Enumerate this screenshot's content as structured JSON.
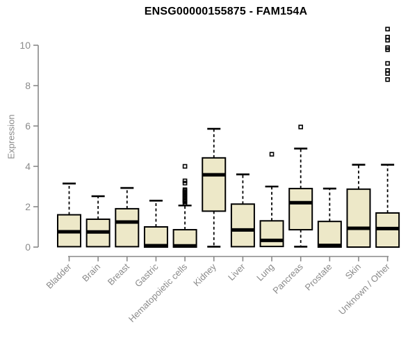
{
  "chart_data": {
    "type": "boxplot",
    "title": "ENSG00000155875 - FAM154A",
    "ylabel": "Expression",
    "xlabel": "",
    "ylim": [
      0,
      10.9
    ],
    "yticks": [
      0,
      2,
      4,
      6,
      8,
      10
    ],
    "grid": false,
    "legend": "none",
    "categories": [
      "Bladder",
      "Brain",
      "Breast",
      "Gastric",
      "Hematopoietic cells",
      "Kidney",
      "Liver",
      "Lung",
      "Pancreas",
      "Prostate",
      "Skin",
      "Unknown / Other"
    ],
    "series": [
      {
        "name": "Bladder",
        "whisker_low": 0.02,
        "q1": 0.02,
        "median": 0.76,
        "q3": 1.6,
        "whisker_high": 3.15,
        "outliers": []
      },
      {
        "name": "Brain",
        "whisker_low": 0.02,
        "q1": 0.02,
        "median": 0.75,
        "q3": 1.38,
        "whisker_high": 2.52,
        "outliers": []
      },
      {
        "name": "Breast",
        "whisker_low": 0.02,
        "q1": 0.02,
        "median": 1.24,
        "q3": 1.9,
        "whisker_high": 2.93,
        "outliers": []
      },
      {
        "name": "Gastric",
        "whisker_low": 0.0,
        "q1": 0.0,
        "median": 0.07,
        "q3": 1.0,
        "whisker_high": 2.3,
        "outliers": []
      },
      {
        "name": "Hematopoietic cells",
        "whisker_low": 0.0,
        "q1": 0.0,
        "median": 0.06,
        "q3": 0.86,
        "whisker_high": 2.06,
        "outliers": [
          2.18,
          2.25,
          2.3,
          2.36,
          2.42,
          2.48,
          2.54,
          2.6,
          2.66,
          2.72,
          2.78,
          2.84,
          3.17,
          3.28,
          4.0
        ]
      },
      {
        "name": "Kidney",
        "whisker_low": 0.02,
        "q1": 1.78,
        "median": 3.58,
        "q3": 4.42,
        "whisker_high": 5.86,
        "outliers": []
      },
      {
        "name": "Liver",
        "whisker_low": 0.02,
        "q1": 0.02,
        "median": 0.85,
        "q3": 2.13,
        "whisker_high": 3.6,
        "outliers": []
      },
      {
        "name": "Lung",
        "whisker_low": 0.03,
        "q1": 0.03,
        "median": 0.33,
        "q3": 1.3,
        "whisker_high": 3.0,
        "outliers": [
          4.6
        ]
      },
      {
        "name": "Pancreas",
        "whisker_low": 0.02,
        "q1": 0.86,
        "median": 2.2,
        "q3": 2.9,
        "whisker_high": 4.88,
        "outliers": [
          5.95
        ]
      },
      {
        "name": "Prostate",
        "whisker_low": 0.0,
        "q1": 0.0,
        "median": 0.08,
        "q3": 1.27,
        "whisker_high": 2.9,
        "outliers": []
      },
      {
        "name": "Skin",
        "whisker_low": 0.0,
        "q1": 0.0,
        "median": 0.93,
        "q3": 2.87,
        "whisker_high": 4.08,
        "outliers": []
      },
      {
        "name": "Unknown / Other",
        "whisker_low": 0.0,
        "q1": 0.0,
        "median": 0.92,
        "q3": 1.69,
        "whisker_high": 4.08,
        "outliers": [
          8.3,
          8.6,
          8.75,
          9.1,
          9.78,
          9.88,
          10.25,
          10.4,
          10.8
        ]
      }
    ],
    "colors": {
      "background": "#FFFFFF",
      "box_fill": "#EDE8C8",
      "box_border": "#000000",
      "median": "#000000",
      "whisker": "#000000",
      "outlier": "#000000",
      "axis": "#888888",
      "tick_label": "#8A8A8A",
      "title": "#000000"
    }
  }
}
